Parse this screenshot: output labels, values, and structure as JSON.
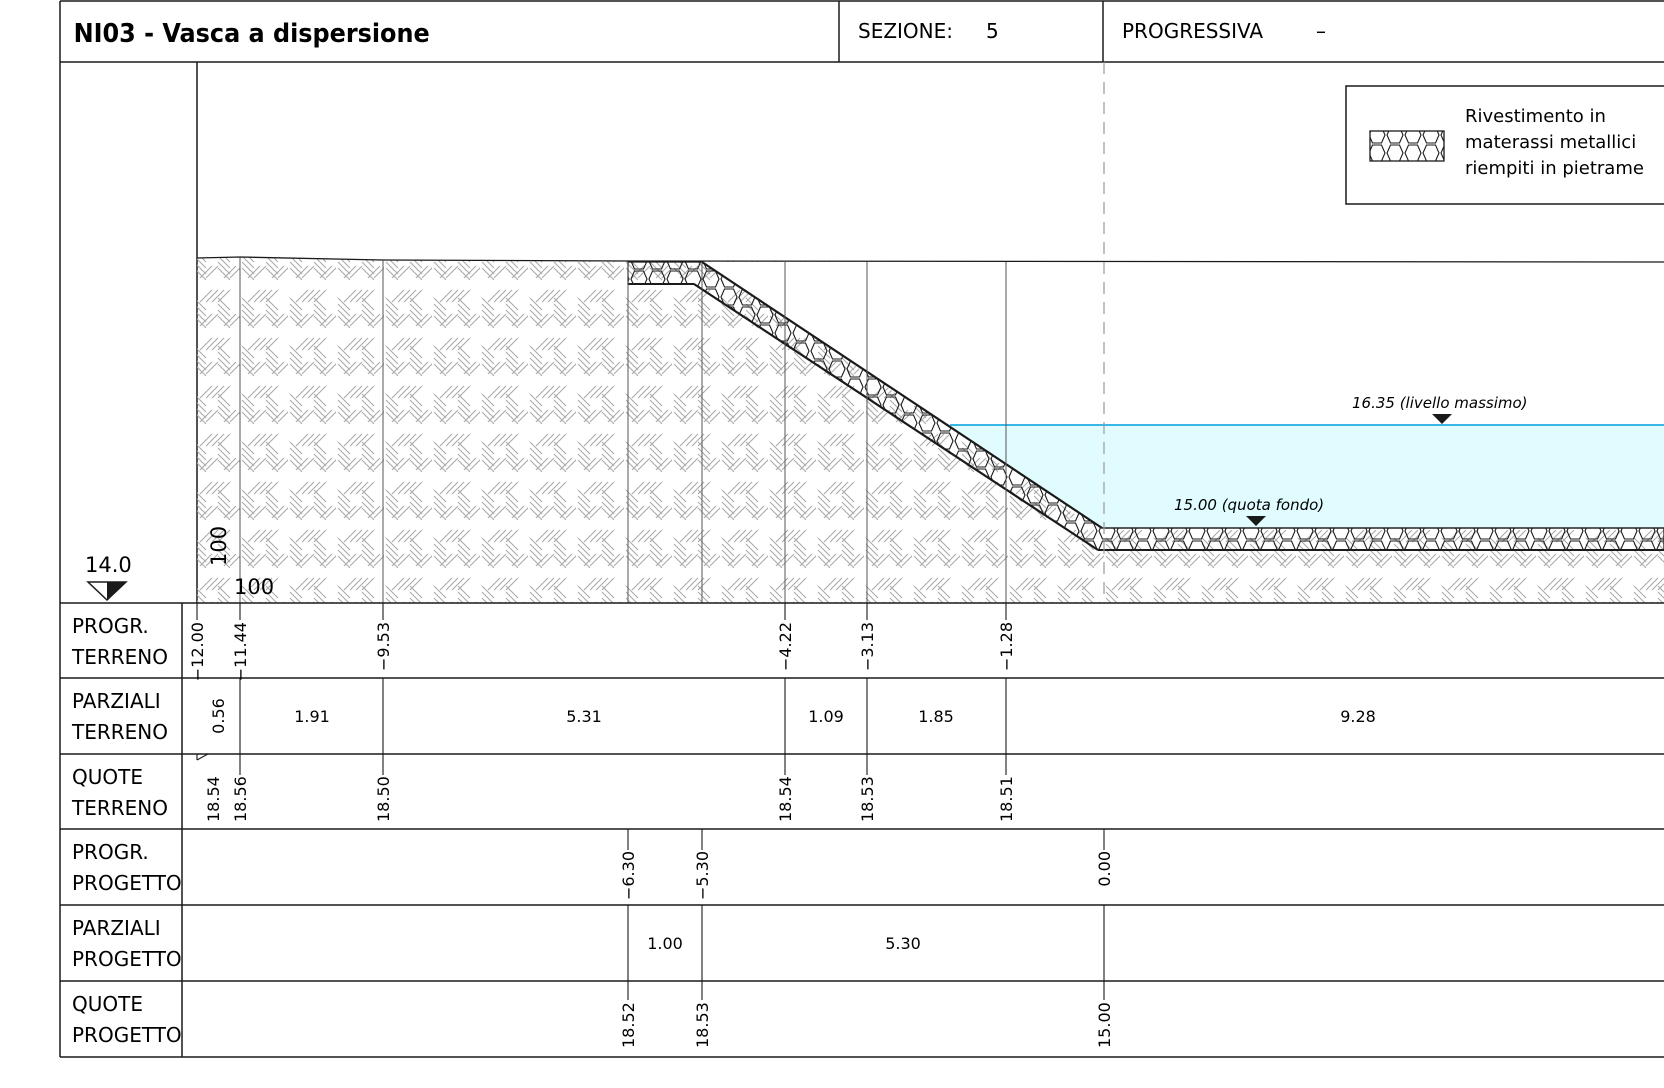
{
  "header": {
    "title": "NI03 - Vasca a dispersione",
    "sezione_label": "SEZIONE:",
    "sezione_value": "5",
    "progressiva_label": "PROGRESSIVA",
    "progressiva_value": "–"
  },
  "legend": {
    "line1": "Rivestimento in",
    "line2": "materassi metallici",
    "line3": "riempiti in pietrame"
  },
  "levels": {
    "max": "16.35 (livello massimo)",
    "fondo": "15.00 (quota fondo)",
    "reference": "14.0",
    "hscale": "100",
    "vscale": "100"
  },
  "table": {
    "rows": [
      {
        "l1": "PROGR.",
        "l2": "TERRENO"
      },
      {
        "l1": "PARZIALI",
        "l2": "TERRENO"
      },
      {
        "l1": "QUOTE",
        "l2": "TERRENO"
      },
      {
        "l1": "PROGR.",
        "l2": "PROGETTO"
      },
      {
        "l1": "PARZIALI",
        "l2": "PROGETTO"
      },
      {
        "l1": "QUOTE",
        "l2": "PROGETTO"
      }
    ],
    "progr_terreno": [
      "−12.00",
      "−11.44",
      "−9.53",
      "−4.22",
      "−3.13",
      "−1.28"
    ],
    "parziali_terreno": [
      "0.56",
      "1.91",
      "5.31",
      "1.09",
      "1.85",
      "9.28"
    ],
    "quote_terreno": [
      "18.54",
      "18.56",
      "18.50",
      "18.54",
      "18.53",
      "18.51"
    ],
    "progr_progetto": [
      "−6.30",
      "−5.30",
      "0.00"
    ],
    "parziali_progetto": [
      "1.00",
      "5.30"
    ],
    "quote_progetto": [
      "18.52",
      "18.53",
      "15.00"
    ]
  },
  "colors": {
    "water": "#e0fcfe",
    "water_line": "#38b6e8",
    "lines": "#1a1a1a",
    "hatch": "#a9a9a9",
    "dashed_axis": "#9a9a9a"
  }
}
